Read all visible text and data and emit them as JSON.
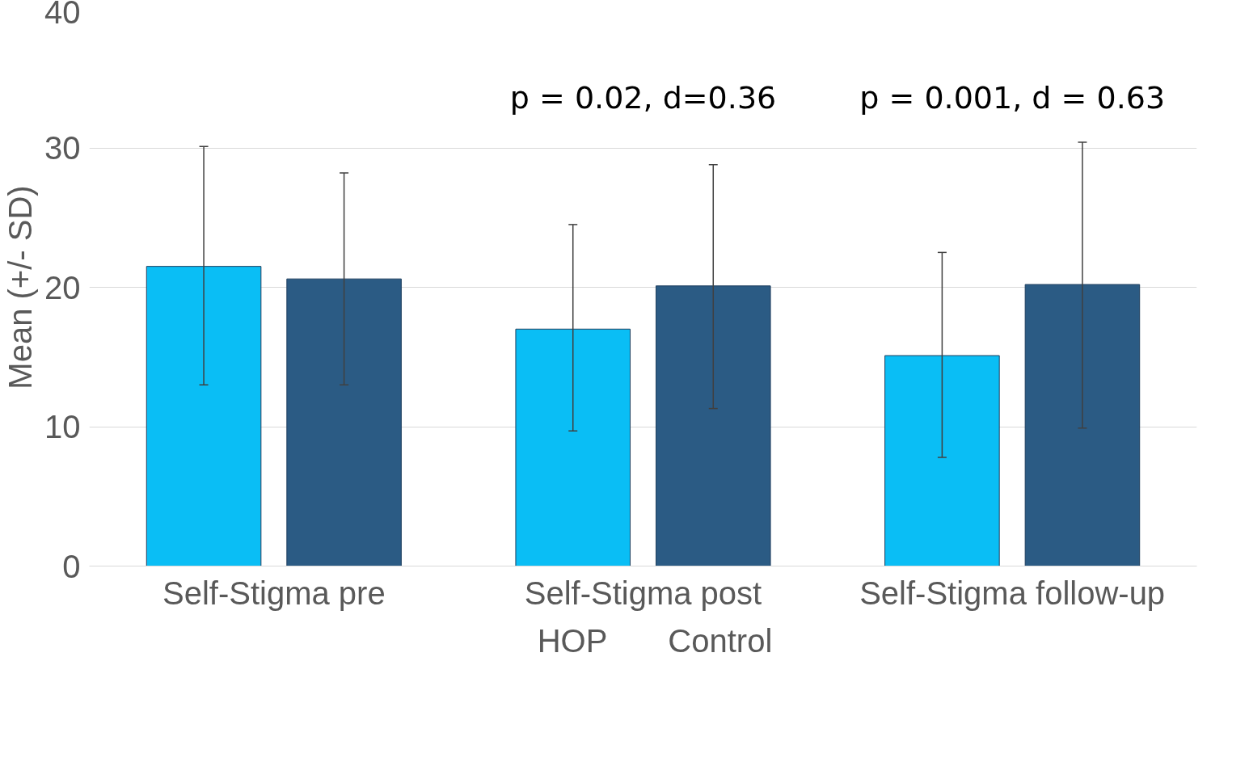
{
  "chart_data": {
    "type": "bar",
    "ylabel": "Mean (+/- SD)",
    "categories": [
      "Self-Stigma pre",
      "Self-Stigma post",
      "Self-Stigma follow-up"
    ],
    "series": [
      {
        "name": "HOP",
        "color": "#0abef5",
        "values": [
          21.5,
          17.0,
          15.1
        ],
        "errors": [
          [
            13.0,
            30.1
          ],
          [
            9.7,
            24.5
          ],
          [
            7.8,
            22.5
          ]
        ]
      },
      {
        "name": "Control",
        "color": "#2b5b84",
        "values": [
          20.6,
          20.1,
          20.2
        ],
        "errors": [
          [
            13.0,
            28.2
          ],
          [
            11.3,
            28.8
          ],
          [
            9.9,
            30.4
          ]
        ]
      }
    ],
    "annotations": [
      "p = 0.02, d=0.36",
      "p = 0.001, d = 0.63"
    ],
    "ylim": [
      0,
      40
    ],
    "yticks": [
      0,
      10,
      20,
      30,
      40
    ],
    "grid": "y",
    "legend": "bottom"
  }
}
